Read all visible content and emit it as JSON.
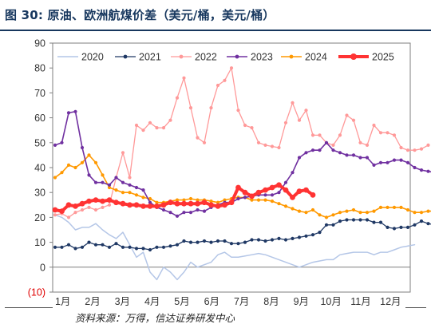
{
  "title": "图 30:  原油、欧洲航煤价差（美元/桶，美元/桶）",
  "source": "资料来源：万得，信达证券研发中心",
  "chart_data": {
    "type": "line",
    "ylim": [
      -10,
      90
    ],
    "yticks": [
      90,
      80,
      70,
      60,
      50,
      40,
      30,
      20,
      10,
      0,
      -10
    ],
    "ytick_labels": [
      "90",
      "80",
      "70",
      "60",
      "50",
      "40",
      "30",
      "20",
      "10",
      "0",
      "(10)"
    ],
    "months": [
      "1月",
      "2月",
      "3月",
      "4月",
      "5月",
      "6月",
      "7月",
      "8月",
      "9月",
      "10月",
      "11月",
      "12月"
    ],
    "legend_position": "top",
    "grid": false,
    "series": [
      {
        "name": "2020",
        "color": "#b4c6e7",
        "marker": "line",
        "width": 1.5,
        "values": [
          21,
          20,
          18,
          15,
          16,
          16,
          17.5,
          15,
          13,
          11.5,
          14,
          9,
          4,
          6,
          -2,
          -5,
          0,
          -2,
          -5,
          -2,
          2,
          0,
          1,
          2,
          5,
          6,
          4,
          4,
          4.5,
          5,
          5.5,
          5,
          4,
          3,
          2,
          1,
          0,
          1,
          2,
          2.5,
          3,
          3,
          5,
          5.5,
          6,
          6,
          6,
          5,
          6,
          6,
          7,
          8,
          8.5,
          9
        ]
      },
      {
        "name": "2021",
        "color": "#1f3864",
        "marker": "dot",
        "width": 1.3,
        "values": [
          8,
          8,
          9,
          7.5,
          8,
          10,
          9,
          9,
          8,
          9.5,
          8,
          8,
          7.5,
          7.5,
          7,
          8,
          8,
          8.5,
          9,
          10.5,
          10,
          10,
          10.5,
          10,
          10.5,
          10.5,
          9.5,
          9.5,
          10,
          11,
          11,
          10.5,
          11,
          11.5,
          11,
          11.5,
          12,
          12.5,
          13,
          14,
          17,
          17,
          18.5,
          19,
          19,
          19,
          19,
          18,
          18,
          16,
          15.5,
          16,
          16,
          17,
          18.5,
          17.5,
          17
        ]
      },
      {
        "name": "2022",
        "color": "#ff9999",
        "marker": "dot",
        "width": 1.3,
        "values": [
          21,
          21.5,
          20,
          22,
          23,
          24,
          23,
          24,
          25,
          36,
          46,
          36,
          57,
          55,
          58,
          56,
          56,
          59,
          68,
          76,
          64,
          52,
          50,
          64,
          73,
          75,
          80,
          63,
          57,
          56,
          50,
          49,
          48.5,
          48,
          58,
          66,
          59,
          63,
          53,
          53,
          50,
          49,
          53,
          61,
          59,
          50,
          49,
          57,
          54,
          54,
          53,
          48,
          47,
          47,
          47.5,
          49
        ]
      },
      {
        "name": "2023",
        "color": "#7030a0",
        "marker": "dot",
        "width": 1.6,
        "values": [
          49,
          50,
          62,
          62.5,
          48,
          37,
          34,
          34,
          33,
          36,
          34,
          33,
          32,
          31,
          26,
          24,
          23,
          22,
          20.5,
          22,
          22,
          23,
          22.5,
          24,
          25,
          26,
          26,
          27.5,
          28,
          28.5,
          29,
          29,
          29,
          30,
          34,
          38,
          44,
          46,
          47,
          47,
          50,
          47,
          46,
          45,
          45,
          44,
          44,
          41,
          42,
          42,
          43,
          43,
          42,
          40,
          39,
          38.5,
          38,
          40,
          37.5
        ]
      },
      {
        "name": "2024",
        "color": "#ff9900",
        "marker": "dot",
        "width": 1.6,
        "values": [
          36,
          38,
          41,
          40,
          42,
          45,
          42,
          37,
          32,
          31,
          30,
          30,
          29,
          28,
          27.5,
          26,
          26,
          26.5,
          27,
          27,
          27.5,
          27,
          27,
          26.5,
          26,
          27,
          27.5,
          28,
          28,
          27,
          27,
          27,
          26.5,
          25.5,
          24.5,
          23.5,
          22.5,
          22,
          23,
          21,
          20,
          21,
          22,
          22.5,
          23,
          22,
          22,
          22.5,
          24,
          24,
          24,
          24,
          23,
          22,
          22,
          22.5,
          22.5
        ]
      },
      {
        "name": "2025",
        "color": "#ff3333",
        "marker": "dot",
        "width": 4,
        "values": [
          23,
          22.5,
          25,
          24.5,
          25.5,
          26.5,
          27,
          26.5,
          27,
          26,
          25.5,
          25,
          25,
          24.5,
          24.5,
          24.5,
          25,
          26,
          25.5,
          25.5,
          25.5,
          25.5,
          26,
          25,
          24.5,
          25,
          26,
          32,
          30,
          28.5,
          30,
          31,
          32,
          33,
          31,
          28,
          30.5,
          31,
          29
        ]
      }
    ]
  }
}
